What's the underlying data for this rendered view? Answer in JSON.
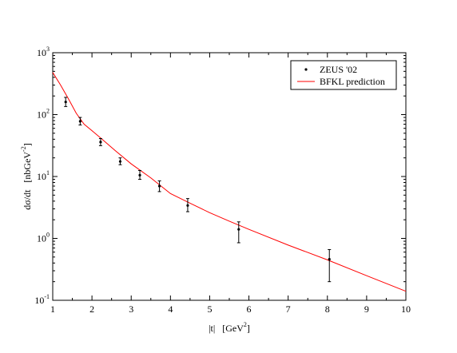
{
  "chart_data": {
    "type": "scatter",
    "title": "",
    "xlabel_main": "|t|",
    "xlabel_unit": "GeV",
    "xlabel_unit_sup": "2",
    "ylabel_main": "dσ/dt",
    "ylabel_unit": "nbGeV",
    "ylabel_unit_sup": "-2",
    "xlim": [
      1,
      10
    ],
    "ylim": [
      0.1,
      1000
    ],
    "yscale": "log",
    "x_ticks": [
      "1",
      "2",
      "3",
      "4",
      "5",
      "6",
      "7",
      "8",
      "9",
      "10"
    ],
    "y_ticks": [
      {
        "base": "10",
        "exp": "-1",
        "value": 0.1
      },
      {
        "base": "10",
        "exp": "0",
        "value": 1
      },
      {
        "base": "10",
        "exp": "1",
        "value": 10
      },
      {
        "base": "10",
        "exp": "2",
        "value": 100
      },
      {
        "base": "10",
        "exp": "3",
        "value": 1000
      }
    ],
    "legend": {
      "placement": "top-right",
      "entries": [
        {
          "label": "ZEUS  '02",
          "kind": "marker",
          "color": "#000000"
        },
        {
          "label": "BFKL prediction",
          "kind": "line",
          "color": "#ff0000"
        }
      ]
    },
    "series": [
      {
        "name": "ZEUS  '02",
        "kind": "points",
        "color": "#000000",
        "points": [
          {
            "x": 1.33,
            "y": 160,
            "ylo": 135,
            "yhi": 190
          },
          {
            "x": 1.7,
            "y": 78,
            "ylo": 68,
            "yhi": 90
          },
          {
            "x": 2.22,
            "y": 36,
            "ylo": 31.5,
            "yhi": 41
          },
          {
            "x": 2.72,
            "y": 17.5,
            "ylo": 15.5,
            "yhi": 20
          },
          {
            "x": 3.22,
            "y": 10.5,
            "ylo": 9.0,
            "yhi": 12.5
          },
          {
            "x": 3.72,
            "y": 7.0,
            "ylo": 5.7,
            "yhi": 8.5
          },
          {
            "x": 4.44,
            "y": 3.4,
            "ylo": 2.7,
            "yhi": 4.4
          },
          {
            "x": 5.74,
            "y": 1.4,
            "ylo": 0.85,
            "yhi": 1.85
          },
          {
            "x": 8.05,
            "y": 0.46,
            "ylo": 0.2,
            "yhi": 0.66
          }
        ]
      },
      {
        "name": "BFKL prediction",
        "kind": "line",
        "color": "#ff0000",
        "x": [
          1.0,
          1.2,
          1.4,
          1.6,
          1.8,
          2.0,
          2.3,
          2.6,
          3.0,
          3.5,
          4.0,
          4.5,
          5.0,
          5.5,
          6.0,
          7.0,
          8.0,
          9.0,
          10.0
        ],
        "y": [
          480,
          300,
          180,
          105,
          70,
          55,
          38,
          26,
          16,
          9.5,
          5.3,
          3.7,
          2.6,
          1.9,
          1.4,
          0.78,
          0.45,
          0.25,
          0.14
        ]
      }
    ]
  }
}
